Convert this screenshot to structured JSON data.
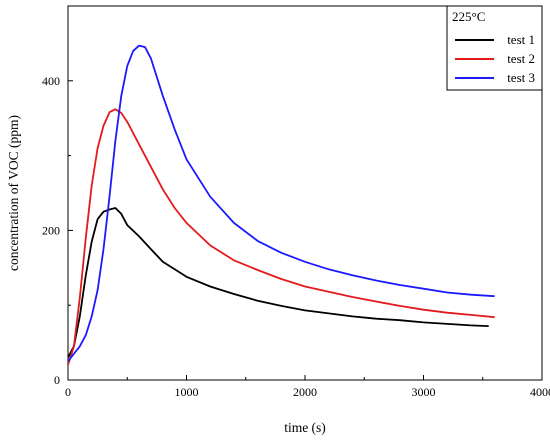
{
  "chart_data": {
    "type": "line",
    "xlabel": "time (s)",
    "ylabel": "concentration of VOC (ppm)",
    "xlim": [
      0,
      4000
    ],
    "ylim": [
      0,
      500
    ],
    "xticks": [
      0,
      1000,
      2000,
      3000,
      4000
    ],
    "yticks": [
      0,
      200,
      400
    ],
    "grid": false,
    "legend": {
      "title": "225°C",
      "position": "top-right"
    },
    "series": [
      {
        "name": "test 1",
        "color": "#000000",
        "x": [
          0,
          50,
          100,
          150,
          200,
          250,
          300,
          350,
          400,
          450,
          500,
          600,
          700,
          800,
          900,
          1000,
          1200,
          1400,
          1600,
          1800,
          2000,
          2200,
          2400,
          2600,
          2800,
          3000,
          3200,
          3400,
          3550
        ],
        "y": [
          30,
          45,
          85,
          140,
          185,
          215,
          225,
          228,
          230,
          222,
          207,
          192,
          175,
          158,
          148,
          138,
          125,
          115,
          106,
          99,
          93,
          89,
          85,
          82,
          80,
          77,
          75,
          73,
          72
        ]
      },
      {
        "name": "test 2",
        "color": "#e31a1c",
        "x": [
          0,
          50,
          100,
          150,
          200,
          250,
          300,
          350,
          400,
          450,
          500,
          600,
          700,
          800,
          900,
          1000,
          1200,
          1400,
          1600,
          1800,
          2000,
          2200,
          2400,
          2600,
          2800,
          3000,
          3200,
          3400,
          3600
        ],
        "y": [
          20,
          45,
          110,
          190,
          260,
          310,
          340,
          358,
          362,
          357,
          345,
          315,
          285,
          255,
          230,
          210,
          180,
          160,
          147,
          135,
          125,
          118,
          111,
          105,
          99,
          94,
          90,
          87,
          84
        ]
      },
      {
        "name": "test 3",
        "color": "#1a1aff",
        "x": [
          0,
          50,
          100,
          150,
          200,
          250,
          300,
          350,
          400,
          450,
          500,
          550,
          600,
          650,
          700,
          800,
          900,
          1000,
          1200,
          1400,
          1600,
          1800,
          2000,
          2200,
          2400,
          2600,
          2800,
          3000,
          3200,
          3400,
          3600
        ],
        "y": [
          25,
          35,
          45,
          60,
          85,
          120,
          175,
          245,
          320,
          380,
          420,
          440,
          447,
          445,
          430,
          380,
          335,
          295,
          245,
          210,
          186,
          170,
          158,
          148,
          140,
          133,
          127,
          122,
          117,
          114,
          112
        ]
      }
    ]
  }
}
